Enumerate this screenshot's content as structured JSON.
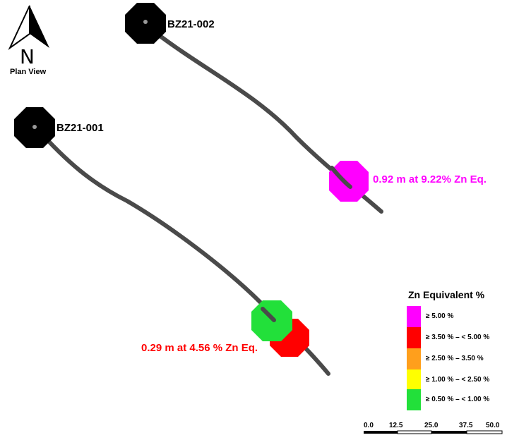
{
  "view_label": "Plan View",
  "north_arrow": {
    "letter": "N",
    "icon": "north-arrow-icon"
  },
  "drillholes": [
    {
      "id": "BZ21-001"
    },
    {
      "id": "BZ21-002"
    }
  ],
  "intercepts": [
    {
      "text": "0.92 m at 9.22% Zn Eq.",
      "color": "#ff00ff"
    },
    {
      "text": "0.29 m at 4.56 % Zn Eq.",
      "color": "#ff0000"
    }
  ],
  "legend": {
    "title": "Zn Equivalent %",
    "items": [
      {
        "label": "≥ 5.00 %",
        "color": "#ff00ff"
      },
      {
        "label": "≥ 3.50 % – < 5.00 %",
        "color": "#ff0000"
      },
      {
        "label": "≥ 2.50 % – 3.50 %",
        "color": "#ff9f1c"
      },
      {
        "label": "≥ 1.00 % – < 2.50 %",
        "color": "#ffff00"
      },
      {
        "label": "≥ 0.50 % – < 1.00 %",
        "color": "#22e03a"
      }
    ]
  },
  "scale_bar": {
    "ticks": [
      "0.0",
      "12.5",
      "25.0",
      "37.5",
      "50.0"
    ]
  },
  "colors": {
    "trace": "#4a4a4a",
    "collar": "#000000"
  }
}
